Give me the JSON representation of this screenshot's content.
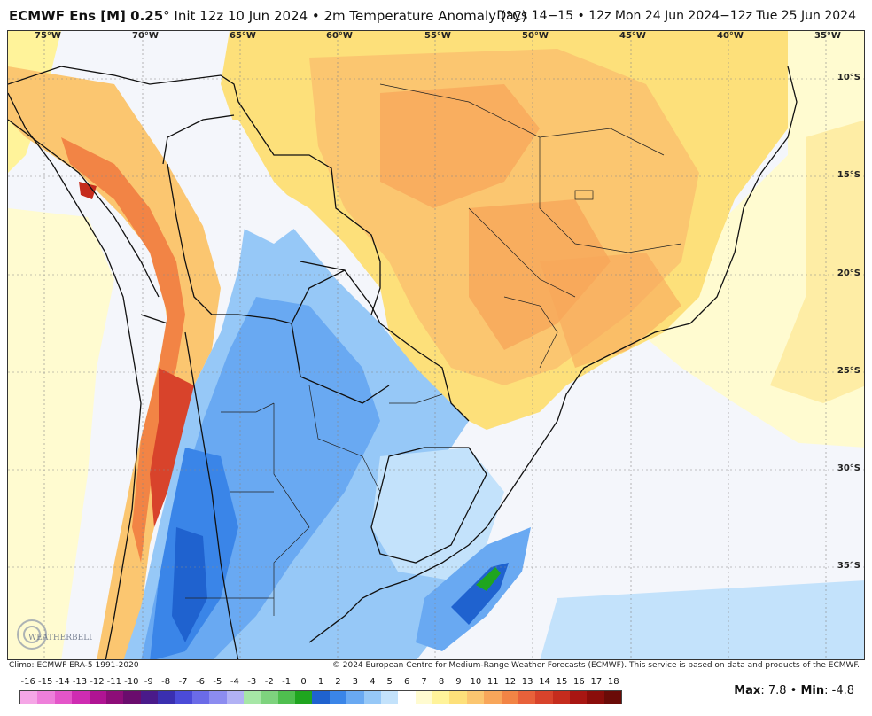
{
  "header": {
    "model": "ECMWF Ens [M] 0.25",
    "deg": "°",
    "init": " Init 12z 10 Jun 2024 • 2m Temperature Anomaly (°C)",
    "valid": "Days 14−15 • 12z Mon 24 Jun 2024−12z Tue 25 Jun 2024"
  },
  "map": {
    "longitudes": [
      "75°W",
      "70°W",
      "65°W",
      "60°W",
      "55°W",
      "50°W",
      "45°W",
      "40°W",
      "35°W"
    ],
    "latitudes": [
      "10°S",
      "15°S",
      "20°S",
      "25°S",
      "30°S",
      "35°S"
    ]
  },
  "footer": {
    "climo": "Climo: ECMWF ERA-5 1991-2020",
    "copyright": "© 2024 European Centre for Medium-Range Weather Forecasts (ECMWF). This service is based on data and products of the ECMWF."
  },
  "colorbar": {
    "ticks": [
      "-16",
      "-15",
      "-14",
      "-13",
      "-12",
      "-11",
      "-10",
      "-9",
      "-8",
      "-7",
      "-6",
      "-5",
      "-4",
      "-3",
      "-2",
      "-1",
      "0",
      "1",
      "2",
      "3",
      "4",
      "5",
      "6",
      "7",
      "8",
      "9",
      "10",
      "11",
      "12",
      "13",
      "14",
      "15",
      "16",
      "17",
      "18"
    ],
    "colors": [
      "#f5a6e6",
      "#ee7fda",
      "#e455c9",
      "#cf2cb2",
      "#b01493",
      "#8d0d78",
      "#6a0c6d",
      "#4a1a8a",
      "#3a2fb0",
      "#4b4bd8",
      "#6b6be8",
      "#8c8cf0",
      "#b1b1f4",
      "#a6e6a6",
      "#7ed37e",
      "#4fbf4f",
      "#1fa51f",
      "#1f62cf",
      "#3a85e8",
      "#69a9f2",
      "#96c8f7",
      "#c3e2fb",
      "#ffffff",
      "#fffbd0",
      "#fff39a",
      "#fde07a",
      "#fbc670",
      "#f8a65a",
      "#f28445",
      "#e8613a",
      "#d8432b",
      "#c52c1d",
      "#a81612",
      "#8a0d0a",
      "#6a0b07"
    ]
  },
  "stats": {
    "max_label": "Max",
    "max_value": ": 7.8 • ",
    "min_label": "Min",
    "min_value": ": -4.8"
  }
}
